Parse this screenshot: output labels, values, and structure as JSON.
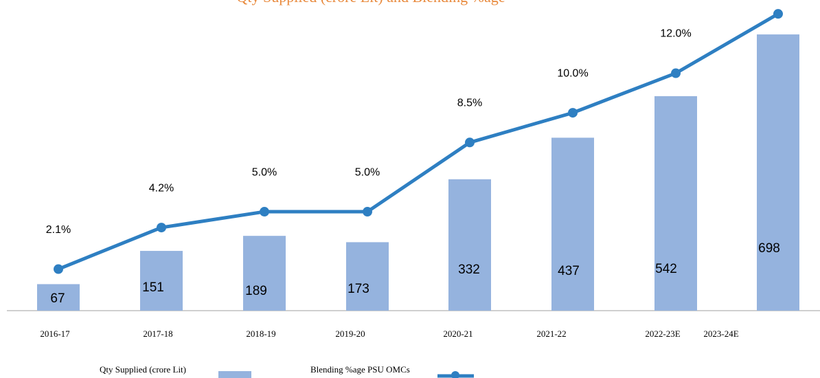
{
  "chart_data": {
    "type": "bar_line",
    "title": "Qty Supplied (crore Lit) and Blending %age",
    "categories": [
      "2016-17",
      "2017-18",
      "2018-19",
      "2019-20",
      "2020-21",
      "2021-22",
      "2022-23E",
      "2023-24E"
    ],
    "series": [
      {
        "name": "Qty Supplied (crore Lit)",
        "type": "bar",
        "color": "#95b3de",
        "values": [
          67,
          151,
          189,
          173,
          332,
          437,
          542,
          698
        ]
      },
      {
        "name": "Blending %age PSU OMCs",
        "type": "line",
        "axis": "y2",
        "color": "#2e7fc2",
        "values": [
          2.1,
          4.2,
          5.0,
          5.0,
          8.5,
          10.0,
          12.0,
          15.0
        ],
        "value_labels": [
          "2.1%",
          "4.2%",
          "5.0%",
          "5.0%",
          "8.5%",
          "10.0%",
          "12.0%",
          null
        ]
      }
    ],
    "ylim": [
      0,
      785
    ],
    "y2lim": [
      0,
      15.7
    ]
  }
}
